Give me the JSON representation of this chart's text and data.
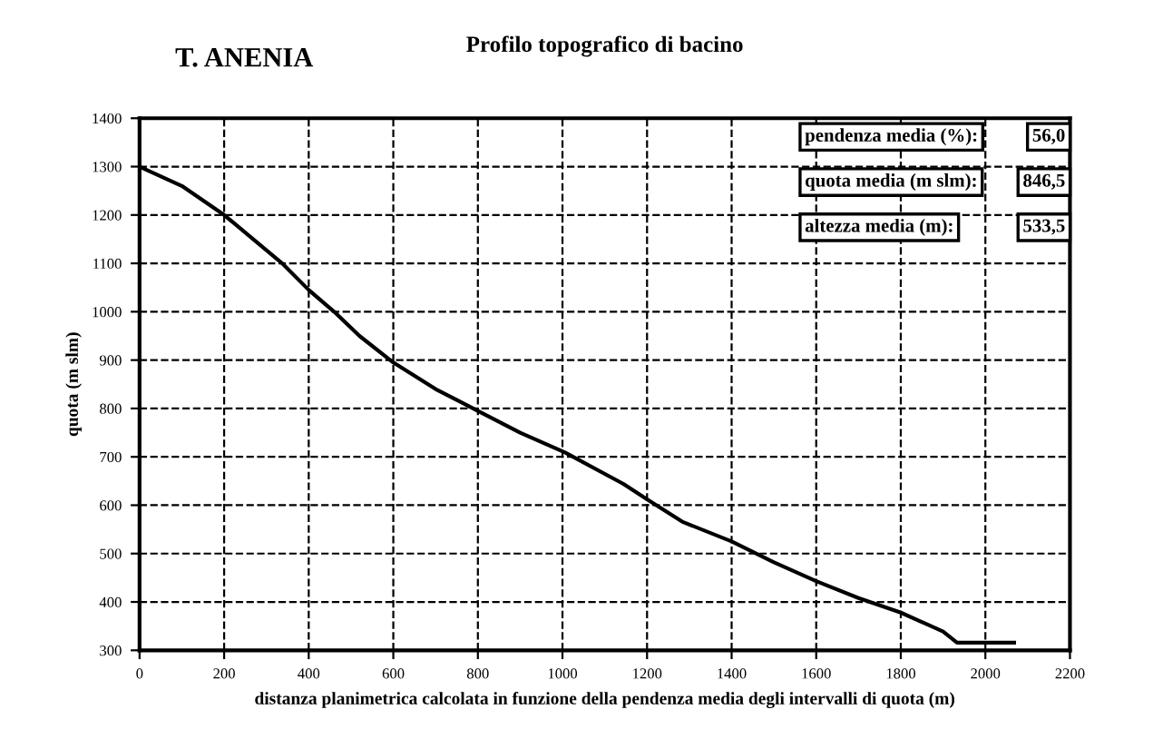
{
  "chart_data": {
    "type": "line",
    "title": "Profilo topografico di bacino",
    "xlabel": "distanza planimetrica calcolata in funzione della pendenza media degli intervalli di quota (m)",
    "ylabel": "quota (m slm)",
    "annotations": [
      "T. ANENIA",
      "pendenza media (%):",
      "56,0",
      "quota media (m slm):",
      "846,5",
      "altezza media (m):",
      "533,5"
    ],
    "series": [
      {
        "color": "#000000",
        "x": [
          0,
          100,
          200,
          336,
          400,
          460,
          520,
          600,
          700,
          800,
          900,
          1006,
          1144,
          1200,
          1283,
          1400,
          1500,
          1600,
          1700,
          1800,
          1900,
          1933,
          2068
        ],
        "values": [
          1300,
          1260,
          1200,
          1101,
          1045,
          1000,
          950,
          895,
          840,
          795,
          750,
          709,
          644,
          612,
          566,
          525,
          482,
          443,
          408,
          378,
          339,
          316,
          316
        ]
      }
    ],
    "xlim": [
      0,
      2200
    ],
    "xticks": [
      0,
      200,
      400,
      600,
      800,
      1000,
      1200,
      1400,
      1600,
      1800,
      2000,
      2200
    ],
    "ylim": [
      300,
      1400
    ],
    "yticks": [
      300,
      400,
      500,
      600,
      700,
      800,
      900,
      1000,
      1100,
      1200,
      1300,
      1400
    ],
    "grid": true,
    "line_style": "solid",
    "marker": "none",
    "legend": false
  }
}
